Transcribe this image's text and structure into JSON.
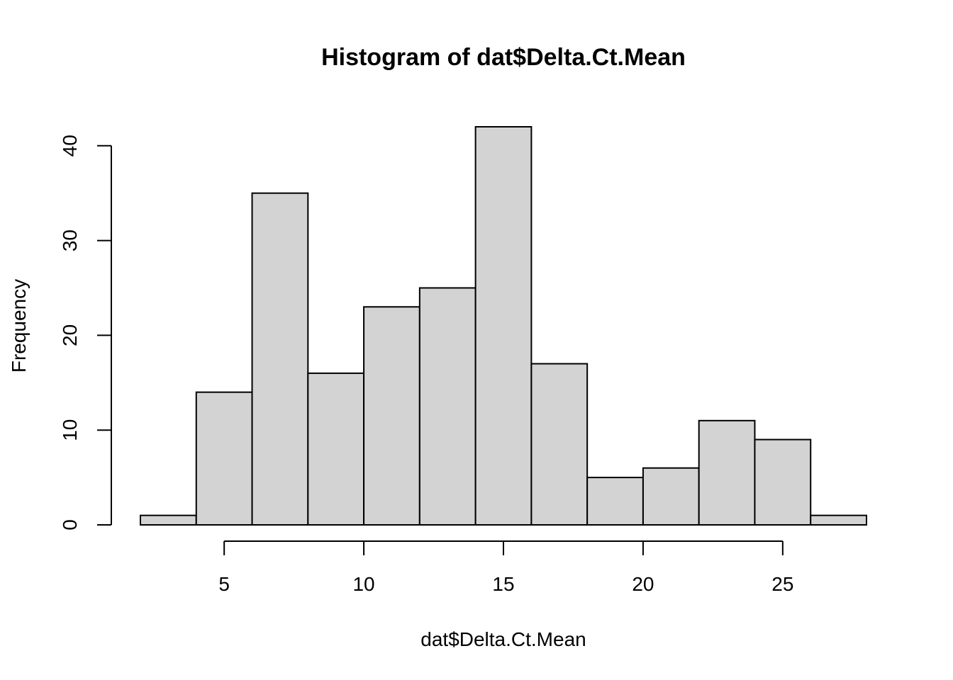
{
  "chart_data": {
    "type": "bar",
    "title": "Histogram of dat$Delta.Ct.Mean",
    "xlabel": "dat$Delta.Ct.Mean",
    "ylabel": "Frequency",
    "bins": [
      {
        "start": 2,
        "end": 4,
        "count": 1
      },
      {
        "start": 4,
        "end": 6,
        "count": 14
      },
      {
        "start": 6,
        "end": 8,
        "count": 35
      },
      {
        "start": 8,
        "end": 10,
        "count": 16
      },
      {
        "start": 10,
        "end": 12,
        "count": 23
      },
      {
        "start": 12,
        "end": 14,
        "count": 25
      },
      {
        "start": 14,
        "end": 16,
        "count": 42
      },
      {
        "start": 16,
        "end": 18,
        "count": 17
      },
      {
        "start": 18,
        "end": 20,
        "count": 5
      },
      {
        "start": 20,
        "end": 22,
        "count": 6
      },
      {
        "start": 22,
        "end": 24,
        "count": 11
      },
      {
        "start": 24,
        "end": 26,
        "count": 9
      },
      {
        "start": 26,
        "end": 28,
        "count": 1
      }
    ],
    "xticks": [
      5,
      10,
      15,
      20,
      25
    ],
    "yticks": [
      0,
      10,
      20,
      30,
      40
    ],
    "xlim": [
      2,
      28
    ],
    "ylim": [
      0,
      42
    ],
    "bar_color": "#d3d3d3",
    "grid": false
  }
}
